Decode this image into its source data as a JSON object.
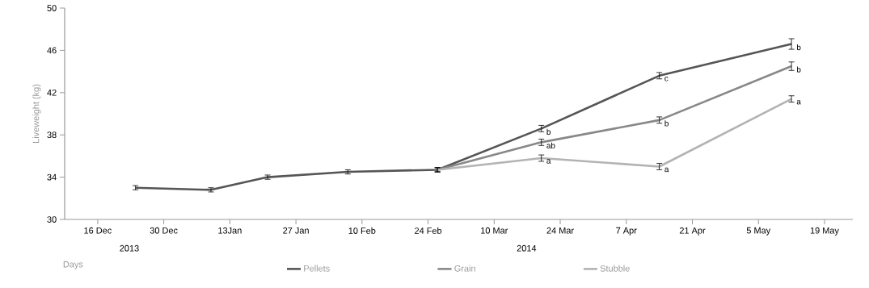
{
  "chart_data": {
    "type": "line",
    "xlabel": "Days",
    "ylabel": "Liveweight (kg)",
    "x": [
      "2013-12-24",
      "2014-01-09",
      "2014-01-21",
      "2014-02-07",
      "2014-02-26",
      "2014-03-20",
      "2014-04-14",
      "2014-05-12"
    ],
    "series": [
      {
        "name": "Pellets",
        "color": "#555555",
        "values": [
          33.0,
          32.8,
          34.0,
          34.5,
          34.7,
          38.6,
          43.6,
          46.6
        ],
        "errors": [
          0.2,
          0.2,
          0.2,
          0.2,
          0.2,
          0.3,
          0.3,
          0.5
        ]
      },
      {
        "name": "Grain",
        "color": "#888888",
        "values": [
          null,
          null,
          null,
          null,
          34.7,
          37.3,
          39.4,
          44.5
        ],
        "errors": [
          null,
          null,
          null,
          null,
          0.2,
          0.3,
          0.3,
          0.4
        ]
      },
      {
        "name": "Stubble",
        "color": "#b3b3b3",
        "values": [
          null,
          null,
          null,
          null,
          34.7,
          35.8,
          35.0,
          41.4
        ],
        "errors": [
          null,
          null,
          null,
          null,
          0.2,
          0.3,
          0.3,
          0.3
        ]
      }
    ],
    "xlim": [
      "2013-12-09",
      "2014-05-25"
    ],
    "xticks": [
      {
        "value": "2013-12-16",
        "label": "16 Dec"
      },
      {
        "value": "2013-12-30",
        "label": "30 Dec"
      },
      {
        "value": "2014-01-13",
        "label": "13Jan"
      },
      {
        "value": "2014-01-27",
        "label": "27 Jan"
      },
      {
        "value": "2014-02-10",
        "label": "10 Feb"
      },
      {
        "value": "2014-02-24",
        "label": "24 Feb"
      },
      {
        "value": "2014-03-10",
        "label": "10 Mar"
      },
      {
        "value": "2014-03-24",
        "label": "24 Mar"
      },
      {
        "value": "2014-04-07",
        "label": "7 Apr"
      },
      {
        "value": "2014-04-21",
        "label": "21 Apr"
      },
      {
        "value": "2014-05-05",
        "label": "5 May"
      },
      {
        "value": "2014-05-19",
        "label": "19 May"
      }
    ],
    "ylim": [
      30,
      50
    ],
    "yticks": [
      30,
      34,
      38,
      42,
      46,
      50
    ],
    "annotations": [
      "2013",
      "2014",
      {
        "text": "b",
        "x": "2014-03-20",
        "y": 38.6
      },
      {
        "text": "ab",
        "x": "2014-03-20",
        "y": 37.3
      },
      {
        "text": "a",
        "x": "2014-03-20",
        "y": 35.8
      },
      {
        "text": "c",
        "x": "2014-04-14",
        "y": 43.6
      },
      {
        "text": "b",
        "x": "2014-04-14",
        "y": 39.4
      },
      {
        "text": "a",
        "x": "2014-04-14",
        "y": 35.0
      },
      {
        "text": "b",
        "x": "2014-05-12",
        "y": 46.6
      },
      {
        "text": "b",
        "x": "2014-05-12",
        "y": 44.5
      },
      {
        "text": "a",
        "x": "2014-05-12",
        "y": 41.4
      }
    ],
    "grid": false,
    "legend": "bottom",
    "marker": "none",
    "line_style": "solid"
  }
}
